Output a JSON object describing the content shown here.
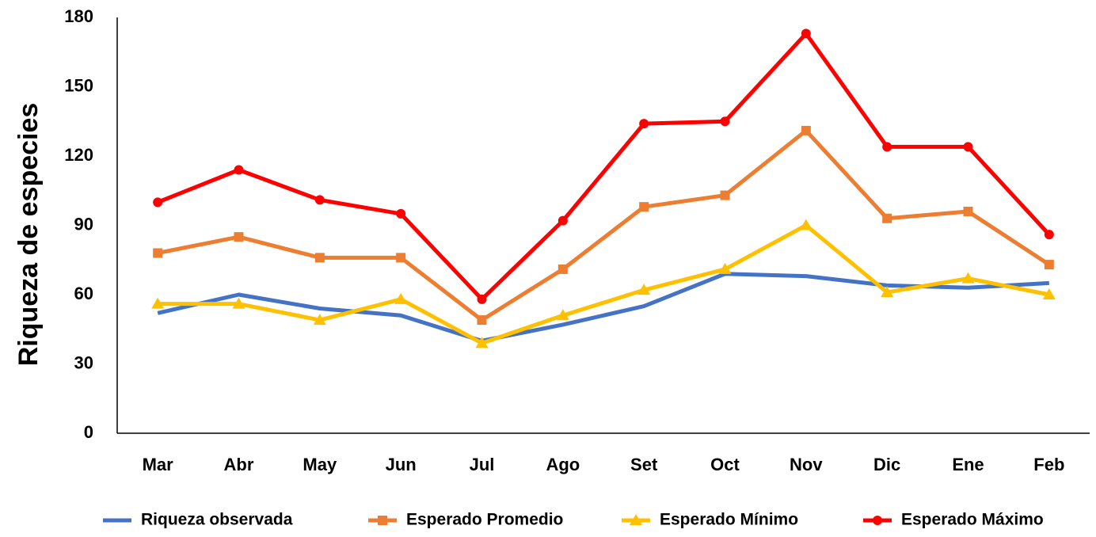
{
  "chart_data": {
    "type": "line",
    "y_label": "Riqueza de especies",
    "categories": [
      "Mar",
      "Abr",
      "May",
      "Jun",
      "Jul",
      "Ago",
      "Set",
      "Oct",
      "Nov",
      "Dic",
      "Ene",
      "Feb"
    ],
    "series": [
      {
        "name": "Riqueza observada",
        "color": "#4472c4",
        "marker": "none",
        "values": [
          52,
          60,
          54,
          51,
          40,
          47,
          55,
          69,
          68,
          64,
          63,
          65
        ]
      },
      {
        "name": "Esperado Promedio",
        "color": "#ed7d31",
        "marker": "square",
        "values": [
          78,
          85,
          76,
          76,
          49,
          71,
          98,
          103,
          131,
          93,
          96,
          73
        ]
      },
      {
        "name": "Esperado Mínimo",
        "color": "#ffc000",
        "marker": "triangle",
        "values": [
          56,
          56,
          49,
          58,
          39,
          51,
          62,
          71,
          90,
          61,
          67,
          60
        ]
      },
      {
        "name": "Esperado Máximo",
        "color": "#ff0000",
        "marker": "circle",
        "values": [
          100,
          114,
          101,
          95,
          58,
          92,
          134,
          135,
          173,
          124,
          124,
          86
        ]
      }
    ],
    "ylim": [
      0,
      180
    ],
    "yticks": [
      0,
      30,
      60,
      90,
      120,
      150,
      180
    ],
    "grid": false,
    "legend": "bottom"
  }
}
